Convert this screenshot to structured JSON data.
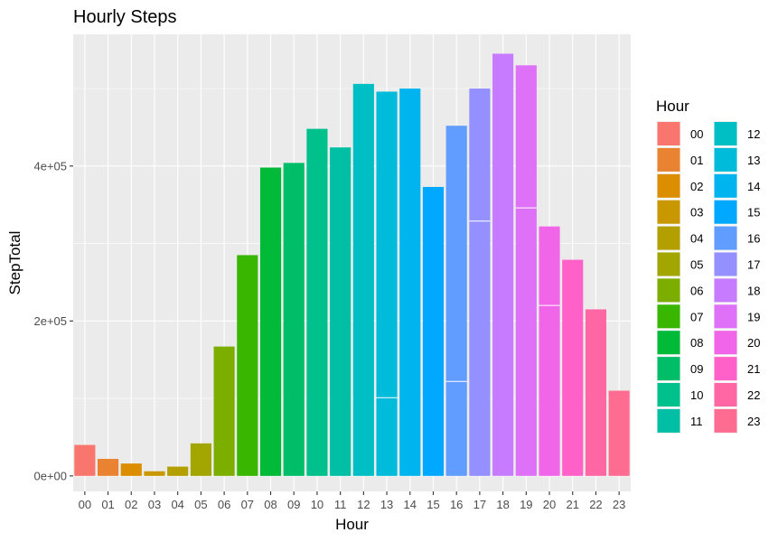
{
  "chart_data": {
    "type": "bar",
    "title": "Hourly Steps",
    "xlabel": "Hour",
    "ylabel": "StepTotal",
    "categories": [
      "00",
      "01",
      "02",
      "03",
      "04",
      "05",
      "06",
      "07",
      "08",
      "09",
      "10",
      "11",
      "12",
      "13",
      "14",
      "15",
      "16",
      "17",
      "18",
      "19",
      "20",
      "21",
      "22",
      "23"
    ],
    "values": [
      40000,
      22000,
      16000,
      6000,
      12000,
      42000,
      167000,
      285000,
      398000,
      404000,
      448000,
      424000,
      506000,
      496000,
      500000,
      373000,
      452000,
      500000,
      545000,
      530000,
      322000,
      279000,
      215000,
      110000
    ],
    "ylim": [
      -20000,
      570000
    ],
    "yticks": [
      0,
      200000,
      400000
    ],
    "ytick_labels": [
      "0e+00",
      "2e+05",
      "4e+05"
    ],
    "stack_boundaries": {
      "13": [
        101000
      ],
      "16": [
        122000
      ],
      "17": [
        329000
      ],
      "19": [
        346000
      ],
      "20": [
        220000
      ]
    },
    "legend": {
      "title": "Hour",
      "placement": "right",
      "columns": [
        [
          "00",
          "01",
          "02",
          "03",
          "04",
          "05",
          "06",
          "07",
          "08",
          "09",
          "10",
          "11"
        ],
        [
          "12",
          "13",
          "14",
          "15",
          "16",
          "17",
          "18",
          "19",
          "20",
          "21",
          "22",
          "23"
        ]
      ]
    },
    "colors": [
      "#F8766D",
      "#EA8331",
      "#DB8E00",
      "#C99800",
      "#B3A000",
      "#A3A500",
      "#7CAE00",
      "#39B600",
      "#00BA38",
      "#00BE67",
      "#00C08B",
      "#00BFA5",
      "#00BFC4",
      "#00BBDA",
      "#00B4F0",
      "#00A9FF",
      "#619CFF",
      "#9590FF",
      "#C77CFF",
      "#DF70F8",
      "#F166E8",
      "#FF61C9",
      "#FF67A4",
      "#FF6C91"
    ],
    "panel_background": "#EBEBEB",
    "grid": true
  }
}
